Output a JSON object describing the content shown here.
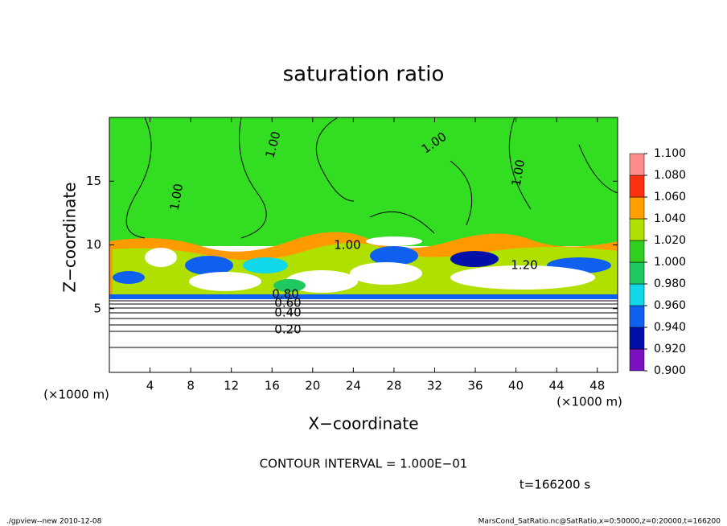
{
  "chart_data": {
    "type": "contour",
    "title": "saturation ratio",
    "xlabel": "X−coordinate",
    "ylabel": "Z−coordinate",
    "xunit": "(×1000 m)",
    "yunit": "(×1000 m)",
    "xlim": [
      0,
      50
    ],
    "xticks": [
      4,
      8,
      12,
      16,
      20,
      24,
      28,
      32,
      36,
      40,
      44,
      48
    ],
    "ylim": [
      0,
      20
    ],
    "yticks": [
      5,
      10,
      15
    ],
    "contour_interval": "CONTOUR INTERVAL = 1.000E−01",
    "time_label": "t=166200 s",
    "contour_labels": [
      "1.00",
      "1.00",
      "1.00",
      "1.00",
      "1.00",
      "1.20",
      "0.80",
      "0.60",
      "0.40",
      "0.20"
    ],
    "colorbar": {
      "levels": [
        {
          "value": 0.9,
          "label": "0.900"
        },
        {
          "value": 0.92,
          "label": "0.920"
        },
        {
          "value": 0.94,
          "label": "0.940"
        },
        {
          "value": 0.96,
          "label": "0.960"
        },
        {
          "value": 0.98,
          "label": "0.980"
        },
        {
          "value": 1.0,
          "label": "1.000"
        },
        {
          "value": 1.02,
          "label": "1.020"
        },
        {
          "value": 1.04,
          "label": "1.040"
        },
        {
          "value": 1.06,
          "label": "1.060"
        },
        {
          "value": 1.08,
          "label": "1.080"
        },
        {
          "value": 1.1,
          "label": "1.100"
        }
      ],
      "colors": [
        "#7a10c0",
        "#0010a8",
        "#1060f0",
        "#10d8e8",
        "#20c860",
        "#30d020",
        "#b0e000",
        "#ffa000",
        "#ff3010",
        "#ff8c8c"
      ]
    },
    "footer_left": "./gpview--new  2010-12-08",
    "footer_right": "MarsCond_SatRatio.nc@SatRatio,x=0:50000,z=0:20000,t=166200"
  }
}
